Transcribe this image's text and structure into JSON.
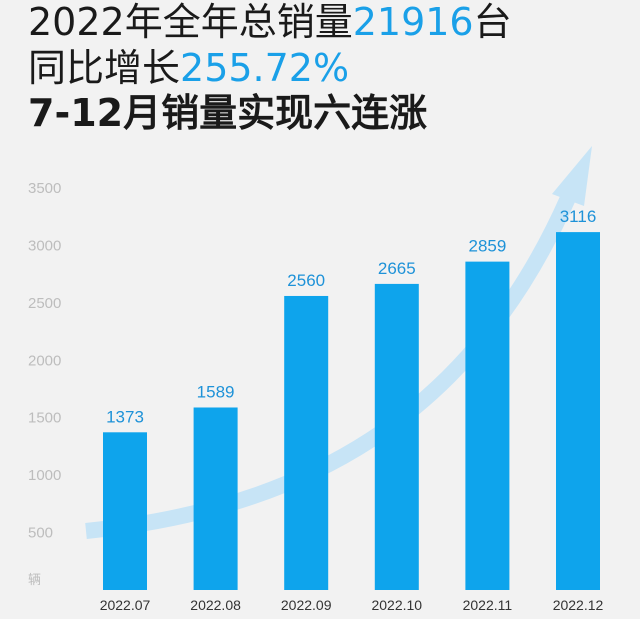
{
  "headline": {
    "line1_prefix": "2022年全年总销量",
    "line1_value": "21916",
    "line1_suffix": "台",
    "line2_prefix": "同比增长",
    "line2_value": "255.72%",
    "line3": "7-12月销量实现六连涨"
  },
  "colors": {
    "bar": "#0ea4ec",
    "accent": "#1aa0e8",
    "arrow": "#c7e4f6",
    "highlight_label": "#1aa0e8"
  },
  "chart_data": {
    "type": "bar",
    "categories": [
      "2022.07",
      "2022.08",
      "2022.09",
      "2022.10",
      "2022.11",
      "2022.12"
    ],
    "values": [
      1373,
      1589,
      2560,
      2665,
      2859,
      3116
    ],
    "data_labels": [
      "1373",
      "1589",
      "2560",
      "2665",
      "2859",
      "3116"
    ],
    "yticks": [
      "500",
      "1000",
      "1500",
      "2000",
      "2500",
      "3000",
      "3500"
    ],
    "ytick_values": [
      500,
      1000,
      1500,
      2000,
      2500,
      3000,
      3500
    ],
    "ylabel": "辆",
    "ylim": [
      0,
      3500
    ],
    "grid": false,
    "highlight_category": "2022.12"
  }
}
